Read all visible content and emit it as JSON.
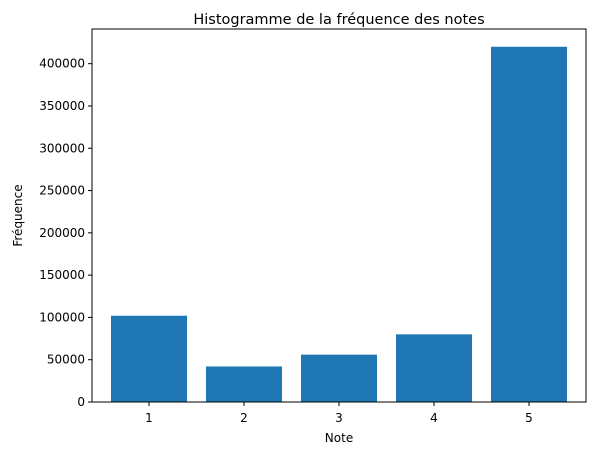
{
  "chart_data": {
    "type": "bar",
    "title": "Histogramme de la fréquence des notes",
    "xlabel": "Note",
    "ylabel": "Fréquence",
    "categories": [
      "1",
      "2",
      "3",
      "4",
      "5"
    ],
    "values": [
      102000,
      42000,
      56000,
      80000,
      420000
    ],
    "ylim": [
      0,
      441000
    ],
    "yticks": [
      0,
      50000,
      100000,
      150000,
      200000,
      250000,
      300000,
      350000,
      400000
    ],
    "ytick_labels": [
      "0",
      "50000",
      "100000",
      "150000",
      "200000",
      "250000",
      "300000",
      "350000",
      "400000"
    ],
    "bar_color": "#1f77b4",
    "grid": false,
    "legend": false
  }
}
